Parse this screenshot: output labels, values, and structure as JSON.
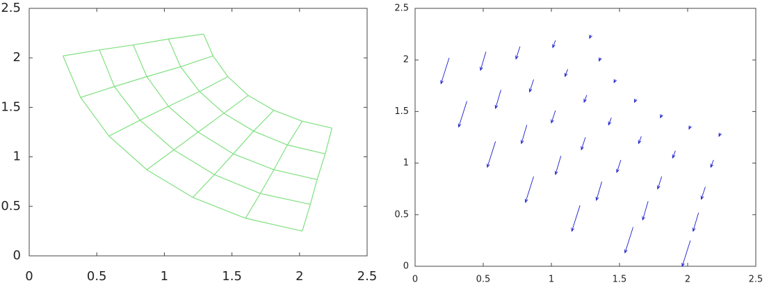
{
  "chart_data": [
    {
      "type": "mesh",
      "color": "#7fe07f",
      "xlim": [
        0,
        2.5
      ],
      "ylim": [
        0,
        2.5
      ],
      "xticks": [
        0,
        0.5,
        1,
        1.5,
        2,
        2.5
      ],
      "yticks": [
        0,
        0.5,
        1,
        1.5,
        2,
        2.5
      ],
      "x": [
        [
          0.25,
          0.38,
          0.59,
          0.87,
          1.21,
          1.6,
          2.02
        ],
        [
          0.52,
          0.63,
          0.82,
          1.07,
          1.37,
          1.71,
          2.08
        ],
        [
          0.77,
          0.87,
          1.03,
          1.25,
          1.51,
          1.81,
          2.13
        ],
        [
          1.03,
          1.12,
          1.26,
          1.44,
          1.66,
          1.91,
          2.19
        ],
        [
          1.29,
          1.36,
          1.47,
          1.62,
          1.81,
          2.02,
          2.24
        ]
      ],
      "y": [
        [
          2.02,
          1.6,
          1.21,
          0.87,
          0.59,
          0.38,
          0.25
        ],
        [
          2.08,
          1.71,
          1.37,
          1.07,
          0.82,
          0.63,
          0.52
        ],
        [
          2.13,
          1.81,
          1.51,
          1.25,
          1.03,
          0.87,
          0.77
        ],
        [
          2.19,
          1.91,
          1.66,
          1.44,
          1.26,
          1.12,
          1.03
        ],
        [
          2.24,
          2.02,
          1.81,
          1.62,
          1.47,
          1.36,
          1.29
        ]
      ]
    },
    {
      "type": "quiver",
      "color": "#1a1acc",
      "xlim": [
        0,
        2.5
      ],
      "ylim": [
        0,
        2.5
      ],
      "xticks": [
        0,
        0.5,
        1,
        1.5,
        2,
        2.5
      ],
      "yticks": [
        0,
        0.5,
        1,
        1.5,
        2,
        2.5
      ],
      "x": [
        0.25,
        0.38,
        0.59,
        0.87,
        1.21,
        1.6,
        2.02,
        0.52,
        0.63,
        0.82,
        1.07,
        1.37,
        1.71,
        2.08,
        0.77,
        0.87,
        1.03,
        1.25,
        1.51,
        1.81,
        2.13,
        1.03,
        1.12,
        1.26,
        1.44,
        1.66,
        1.91,
        2.19,
        1.29,
        1.36,
        1.47,
        1.62,
        1.81,
        2.02,
        2.24
      ],
      "y": [
        2.02,
        1.6,
        1.21,
        0.87,
        0.59,
        0.38,
        0.25,
        2.08,
        1.71,
        1.37,
        1.07,
        0.82,
        0.63,
        0.52,
        2.13,
        1.81,
        1.51,
        1.25,
        1.03,
        0.87,
        0.77,
        2.19,
        1.91,
        1.66,
        1.44,
        1.26,
        1.12,
        1.03,
        2.24,
        2.02,
        1.81,
        1.62,
        1.47,
        1.36,
        1.29
      ],
      "u": [
        -0.06,
        -0.06,
        -0.06,
        -0.06,
        -0.06,
        -0.06,
        -0.06,
        -0.04,
        -0.04,
        -0.04,
        -0.04,
        -0.04,
        -0.04,
        -0.04,
        -0.03,
        -0.03,
        -0.03,
        -0.03,
        -0.03,
        -0.03,
        -0.03,
        -0.02,
        -0.02,
        -0.02,
        -0.02,
        -0.02,
        -0.02,
        -0.02,
        -0.01,
        -0.01,
        -0.01,
        -0.01,
        -0.01,
        -0.01,
        -0.01
      ],
      "v": [
        -0.25,
        -0.25,
        -0.25,
        -0.25,
        -0.25,
        -0.25,
        -0.25,
        -0.18,
        -0.18,
        -0.18,
        -0.18,
        -0.18,
        -0.18,
        -0.18,
        -0.12,
        -0.12,
        -0.12,
        -0.12,
        -0.12,
        -0.12,
        -0.12,
        -0.07,
        -0.07,
        -0.07,
        -0.07,
        -0.07,
        -0.07,
        -0.07,
        -0.03,
        -0.03,
        -0.03,
        -0.03,
        -0.03,
        -0.03,
        -0.03
      ]
    }
  ]
}
